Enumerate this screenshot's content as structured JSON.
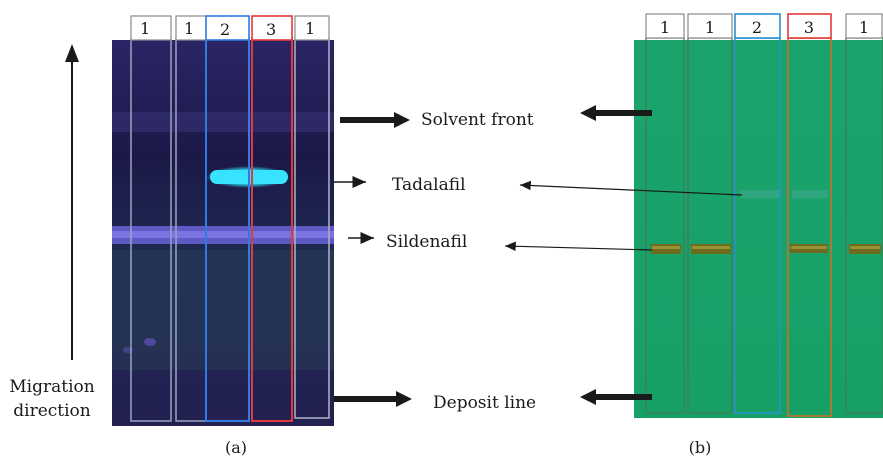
{
  "panel_a": {
    "caption": "(a)",
    "lanes": [
      {
        "label": "1",
        "border": "#9aa0b0"
      },
      {
        "label": "1",
        "border": "#9aa0b0"
      },
      {
        "label": "2",
        "border": "#1f6fd1"
      },
      {
        "label": "3",
        "border": "#e23a3a"
      },
      {
        "label": "1",
        "border": "#9aa0b0"
      }
    ],
    "plate_color": "#27225e",
    "tadalafil_spot_color": "#35e0ff",
    "sildenafil_band_color": "#6a63d8"
  },
  "panel_b": {
    "caption": "(b)",
    "lanes": [
      {
        "label": "1",
        "border": "#4a8a5a"
      },
      {
        "label": "1",
        "border": "#4a8a5a"
      },
      {
        "label": "2",
        "border": "#1f8fd1"
      },
      {
        "label": "3",
        "border": "#d23a3a"
      },
      {
        "label": "1",
        "border": "#4a8a5a"
      }
    ],
    "plate_color": "#1ea36a",
    "spot_color": "#6a6a20"
  },
  "annotations": {
    "solvent_front": "Solvent front",
    "tadalafil": "Tadalafil",
    "sildenafil": "Sildenafil",
    "deposit_line": "Deposit line"
  },
  "migration": {
    "line1": "Migration",
    "line2": "direction"
  }
}
